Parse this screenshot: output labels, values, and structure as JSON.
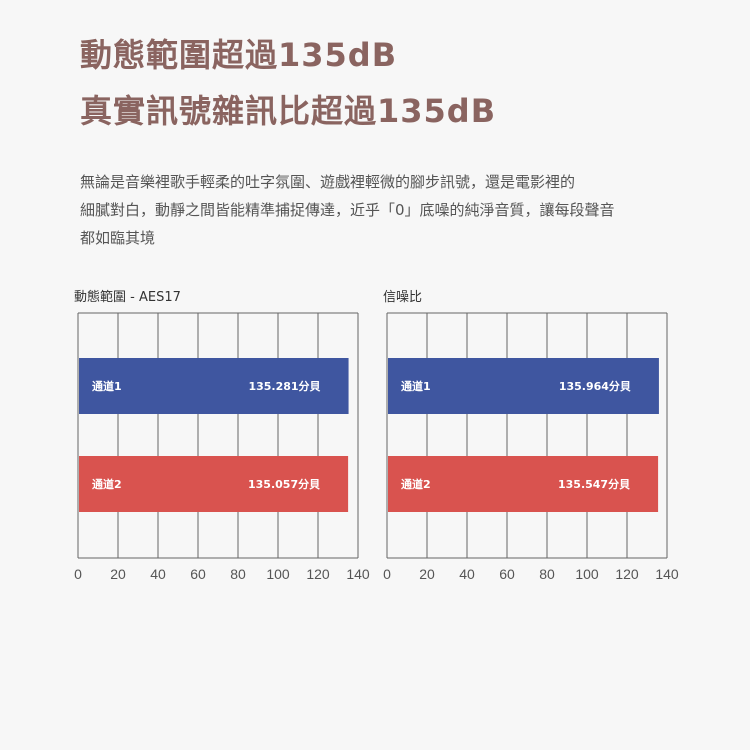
{
  "headline": {
    "line1": "動態範圍超過135dB",
    "line2": "真實訊號雜訊比超過135dB"
  },
  "description": {
    "lines": [
      "無論是音樂裡歌手輕柔的吐字氛圍、遊戲裡輕微的腳步訊號，還是電影裡的",
      "細膩對白，動靜之間皆能精準捕捉傳達，近乎「0」底噪的純淨音質，讓每段聲音",
      "都如臨其境"
    ]
  },
  "colors": {
    "headline": "#8a6460",
    "channel1": "#3f56a0",
    "channel2": "#d9534f",
    "grid": "#666666"
  },
  "chart_data": [
    {
      "type": "bar",
      "orientation": "horizontal",
      "title": "動態範圍 - AES17",
      "categories": [
        "通道1",
        "通道2"
      ],
      "values": [
        135.281,
        135.057
      ],
      "value_labels": [
        "135.281分貝",
        "135.057分貝"
      ],
      "xlim": [
        0,
        140
      ],
      "x_ticks": [
        "0",
        "20",
        "40",
        "60",
        "80",
        "100",
        "120",
        "140"
      ],
      "grid": true
    },
    {
      "type": "bar",
      "orientation": "horizontal",
      "title": "信噪比",
      "categories": [
        "通道1",
        "通道2"
      ],
      "values": [
        135.964,
        135.547
      ],
      "value_labels": [
        "135.964分貝",
        "135.547分貝"
      ],
      "xlim": [
        0,
        140
      ],
      "x_ticks": [
        "0",
        "20",
        "40",
        "60",
        "80",
        "100",
        "120",
        "140"
      ],
      "grid": true
    }
  ]
}
